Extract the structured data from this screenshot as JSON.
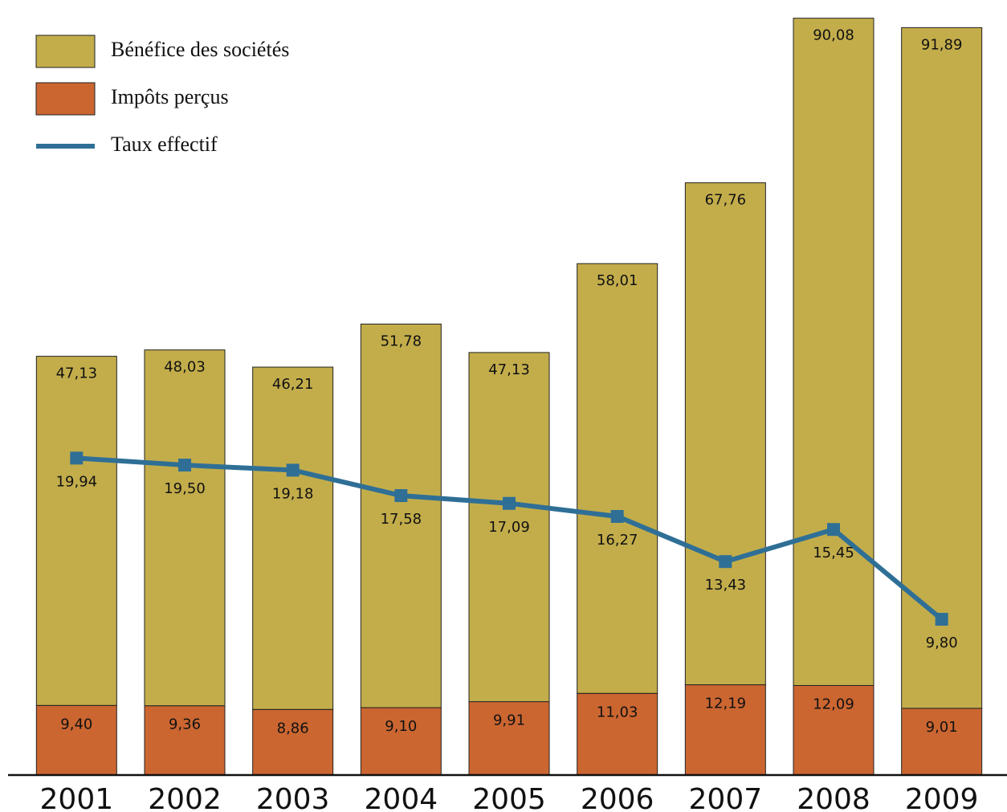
{
  "chart_data": {
    "type": "bar",
    "categories": [
      "2001",
      "2002",
      "2003",
      "2004",
      "2005",
      "2006",
      "2007",
      "2008",
      "2009"
    ],
    "series": [
      {
        "name": "Bénéfice des sociétés",
        "type": "bar",
        "color": "#c3ad4b",
        "values": [
          47.13,
          48.03,
          46.21,
          51.78,
          47.13,
          58.01,
          67.76,
          90.08,
          91.89
        ],
        "value_labels": [
          "47,13",
          "48,03",
          "46,21",
          "51,78",
          "47,13",
          "58,01",
          "67,76",
          "90,08",
          "91,89"
        ]
      },
      {
        "name": "Impôts perçus",
        "type": "bar",
        "color": "#cb6631",
        "values": [
          9.4,
          9.36,
          8.86,
          9.1,
          9.91,
          11.03,
          12.19,
          12.09,
          9.01
        ],
        "value_labels": [
          "9,40",
          "9,36",
          "8,86",
          "9,10",
          "9,91",
          "11,03",
          "12,19",
          "12,09",
          "9,01"
        ]
      },
      {
        "name": "Taux effectif",
        "type": "line",
        "axis": "y2",
        "color": "#2f6f96",
        "values": [
          19.94,
          19.5,
          19.18,
          17.58,
          17.09,
          16.27,
          13.43,
          15.45,
          9.8
        ],
        "value_labels": [
          "19,94",
          "19,50",
          "19,18",
          "17,58",
          "17,09",
          "16,27",
          "13,43",
          "15,45",
          "9,80"
        ]
      }
    ],
    "ylim": [
      0,
      103
    ],
    "y2lim": [
      0,
      48
    ],
    "stacked": true
  }
}
